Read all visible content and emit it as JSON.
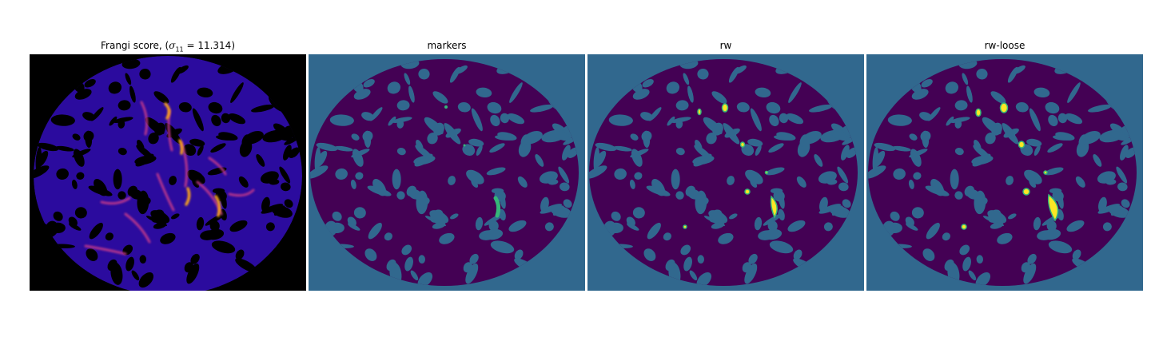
{
  "figure": {
    "panels": [
      {
        "id": "frangi",
        "title_prefix": "Frangi score, (",
        "sigma_symbol": "σ",
        "sigma_subscript": "11",
        "title_suffix": " = 11.314)",
        "colormap": "plasma-on-black"
      },
      {
        "id": "markers",
        "title": "markers",
        "colormap": "viridis-labels"
      },
      {
        "id": "rw",
        "title": "rw",
        "colormap": "viridis-labels"
      },
      {
        "id": "rw-loose",
        "title": "rw-loose",
        "colormap": "viridis-labels"
      }
    ],
    "colors": {
      "frangi_background": "#000000",
      "frangi_vessel": "#2b0b9e",
      "frangi_bright": "#f7a21f",
      "label_background": "#31688e",
      "label_tissue": "#440154",
      "label_marker": "#35b779",
      "label_segment": "#fde725"
    }
  }
}
